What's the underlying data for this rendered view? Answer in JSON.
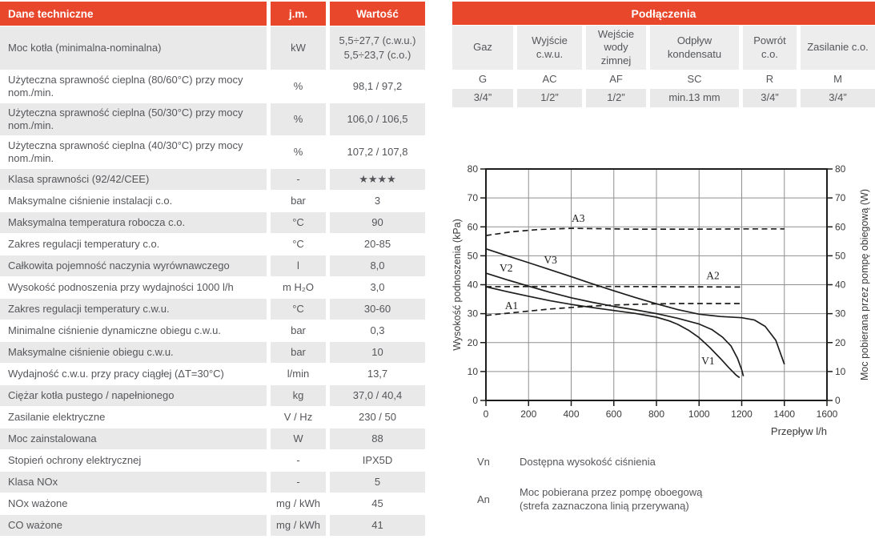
{
  "colors": {
    "accent": "#E8472C",
    "row_gray": "#E9E9E9",
    "text": "#55565A",
    "chart_ink": "#1D1D1B",
    "grid_gray": "#8F8F8F"
  },
  "tech_table": {
    "title": "Dane techniczne",
    "unit_header": "j.m.",
    "value_header": "Wartość",
    "rows": [
      {
        "label": "Moc kotła (minimalna-nominalna)",
        "unit": "kW",
        "value": "5,5÷27,7 (c.w.u.)\n5,5÷23,7 (c.o.)"
      },
      {
        "label": "Użyteczna sprawność cieplna (80/60°C) przy mocy nom./min.",
        "unit": "%",
        "value": "98,1 / 97,2"
      },
      {
        "label": "Użyteczna sprawność cieplna (50/30°C) przy mocy nom./min.",
        "unit": "%",
        "value": "106,0 / 106,5"
      },
      {
        "label": "Użyteczna sprawność cieplna (40/30°C) przy mocy nom./min.",
        "unit": "%",
        "value": "107,2 / 107,8"
      },
      {
        "label": "Klasa sprawności (92/42/CEE)",
        "unit": "-",
        "value": "★★★★"
      },
      {
        "label": "Maksymalne ciśnienie instalacji c.o.",
        "unit": "bar",
        "value": "3"
      },
      {
        "label": "Maksymalna temperatura robocza c.o.",
        "unit": "°C",
        "value": "90"
      },
      {
        "label": "Zakres regulacji temperatury c.o.",
        "unit": "°C",
        "value": "20-85"
      },
      {
        "label": "Całkowita pojemność naczynia wyrównawczego",
        "unit": "l",
        "value": "8,0"
      },
      {
        "label": "Wysokość podnoszenia przy wydajności 1000 l/h",
        "unit": "m H₂O",
        "value": "3,0"
      },
      {
        "label": "Zakres regulacji temperatury c.w.u.",
        "unit": "°C",
        "value": "30-60"
      },
      {
        "label": "Minimalne ciśnienie dynamiczne obiegu c.w.u.",
        "unit": "bar",
        "value": "0,3"
      },
      {
        "label": "Maksymalne ciśnienie obiegu c.w.u.",
        "unit": "bar",
        "value": "10"
      },
      {
        "label": "Wydajność c.w.u. przy pracy ciągłej (ΔT=30°C)",
        "unit": "l/min",
        "value": "13,7"
      },
      {
        "label": "Ciężar kotła pustego / napełnionego",
        "unit": "kg",
        "value": "37,0 / 40,4"
      },
      {
        "label": "Zasilanie elektryczne",
        "unit": "V / Hz",
        "value": "230 / 50"
      },
      {
        "label": "Moc zainstalowana",
        "unit": "W",
        "value": "88"
      },
      {
        "label": "Stopień ochrony elektrycznej",
        "unit": "-",
        "value": "IPX5D"
      },
      {
        "label": "Klasa NOx",
        "unit": "-",
        "value": "5"
      },
      {
        "label": "NOx ważone",
        "unit": "mg / kWh",
        "value": "45"
      },
      {
        "label": "CO ważone",
        "unit": "mg / kWh",
        "value": "41"
      }
    ]
  },
  "connections": {
    "title": "Podłączenia",
    "columns": [
      {
        "header": "Gaz",
        "code": "G",
        "size": "3/4”"
      },
      {
        "header": "Wyjście c.w.u.",
        "code": "AC",
        "size": "1/2”"
      },
      {
        "header": "Wejście wody zimnej",
        "code": "AF",
        "size": "1/2”"
      },
      {
        "header": "Odpływ kondensatu",
        "code": "SC",
        "size": "min.13 mm"
      },
      {
        "header": "Powrót c.o.",
        "code": "R",
        "size": "3/4”"
      },
      {
        "header": "Zasilanie c.o.",
        "code": "M",
        "size": "3/4”"
      }
    ]
  },
  "chart_data": {
    "type": "line",
    "title": "",
    "xlabel": "Przepływ l/h",
    "ylabel_left": "Wysokość podnoszenia (kPa)",
    "ylabel_right": "Moc pobierana przez pompę obiegową (W)",
    "xlim": [
      0,
      1600
    ],
    "ylim": [
      0,
      80
    ],
    "x_tick_step": 200,
    "y_tick_step": 10,
    "grid": true,
    "series": [
      {
        "name": "V1",
        "style": "solid",
        "label_at": [
          1042,
          12.4
        ],
        "points": [
          [
            0,
            39.3
          ],
          [
            100,
            37.6
          ],
          [
            200,
            36.0
          ],
          [
            300,
            34.5
          ],
          [
            400,
            33.2
          ],
          [
            500,
            32.1
          ],
          [
            600,
            31.1
          ],
          [
            700,
            30.1
          ],
          [
            800,
            28.8
          ],
          [
            860,
            27.5
          ],
          [
            900,
            26.3
          ],
          [
            950,
            24.3
          ],
          [
            1000,
            21.7
          ],
          [
            1050,
            18.3
          ],
          [
            1100,
            14.5
          ],
          [
            1140,
            11.3
          ],
          [
            1175,
            8.7
          ],
          [
            1190,
            7.9
          ]
        ]
      },
      {
        "name": "V2",
        "style": "solid",
        "label_at": [
          95,
          44.6
        ],
        "points": [
          [
            0,
            44.0
          ],
          [
            100,
            41.7
          ],
          [
            200,
            39.5
          ],
          [
            300,
            37.4
          ],
          [
            400,
            35.5
          ],
          [
            500,
            33.9
          ],
          [
            600,
            32.5
          ],
          [
            700,
            31.3
          ],
          [
            800,
            30.0
          ],
          [
            900,
            28.4
          ],
          [
            1000,
            26.4
          ],
          [
            1060,
            24.5
          ],
          [
            1110,
            21.9
          ],
          [
            1150,
            18.8
          ],
          [
            1180,
            14.6
          ],
          [
            1200,
            10.6
          ],
          [
            1208,
            8.4
          ]
        ]
      },
      {
        "name": "V3",
        "style": "solid",
        "label_at": [
          303,
          47.3
        ],
        "points": [
          [
            0,
            52.4
          ],
          [
            100,
            50.0
          ],
          [
            200,
            47.6
          ],
          [
            300,
            45.2
          ],
          [
            400,
            42.8
          ],
          [
            500,
            40.3
          ],
          [
            600,
            37.9
          ],
          [
            700,
            35.6
          ],
          [
            800,
            33.4
          ],
          [
            900,
            31.4
          ],
          [
            1000,
            29.8
          ],
          [
            1100,
            29.0
          ],
          [
            1200,
            28.6
          ],
          [
            1260,
            27.8
          ],
          [
            1310,
            25.6
          ],
          [
            1360,
            20.8
          ],
          [
            1400,
            12.5
          ]
        ]
      },
      {
        "name": "A1",
        "style": "dashed",
        "label_at": [
          120,
          31.5
        ],
        "points": [
          [
            0,
            29.4
          ],
          [
            150,
            30.5
          ],
          [
            300,
            31.6
          ],
          [
            450,
            32.4
          ],
          [
            600,
            33.0
          ],
          [
            750,
            33.3
          ],
          [
            900,
            33.5
          ],
          [
            1050,
            33.5
          ],
          [
            1200,
            33.5
          ]
        ]
      },
      {
        "name": "A2",
        "style": "dashed",
        "label_at": [
          1065,
          42.0
        ],
        "points": [
          [
            0,
            39.3
          ],
          [
            300,
            39.4
          ],
          [
            600,
            39.4
          ],
          [
            900,
            39.3
          ],
          [
            1200,
            39.2
          ]
        ]
      },
      {
        "name": "A3",
        "style": "dashed",
        "label_at": [
          433,
          61.7
        ],
        "points": [
          [
            0,
            57.0
          ],
          [
            120,
            58.3
          ],
          [
            250,
            59.1
          ],
          [
            400,
            59.5
          ],
          [
            700,
            59.2
          ],
          [
            1000,
            59.2
          ],
          [
            1200,
            59.3
          ],
          [
            1400,
            59.3
          ]
        ]
      }
    ]
  },
  "legend": {
    "items": [
      {
        "key": "Vn",
        "text": "Dostępna wysokość ciśnienia"
      },
      {
        "key": "An",
        "text": "Moc pobierana przez pompę oboegową\n(strefa zaznaczona linią przerywaną)"
      }
    ]
  }
}
